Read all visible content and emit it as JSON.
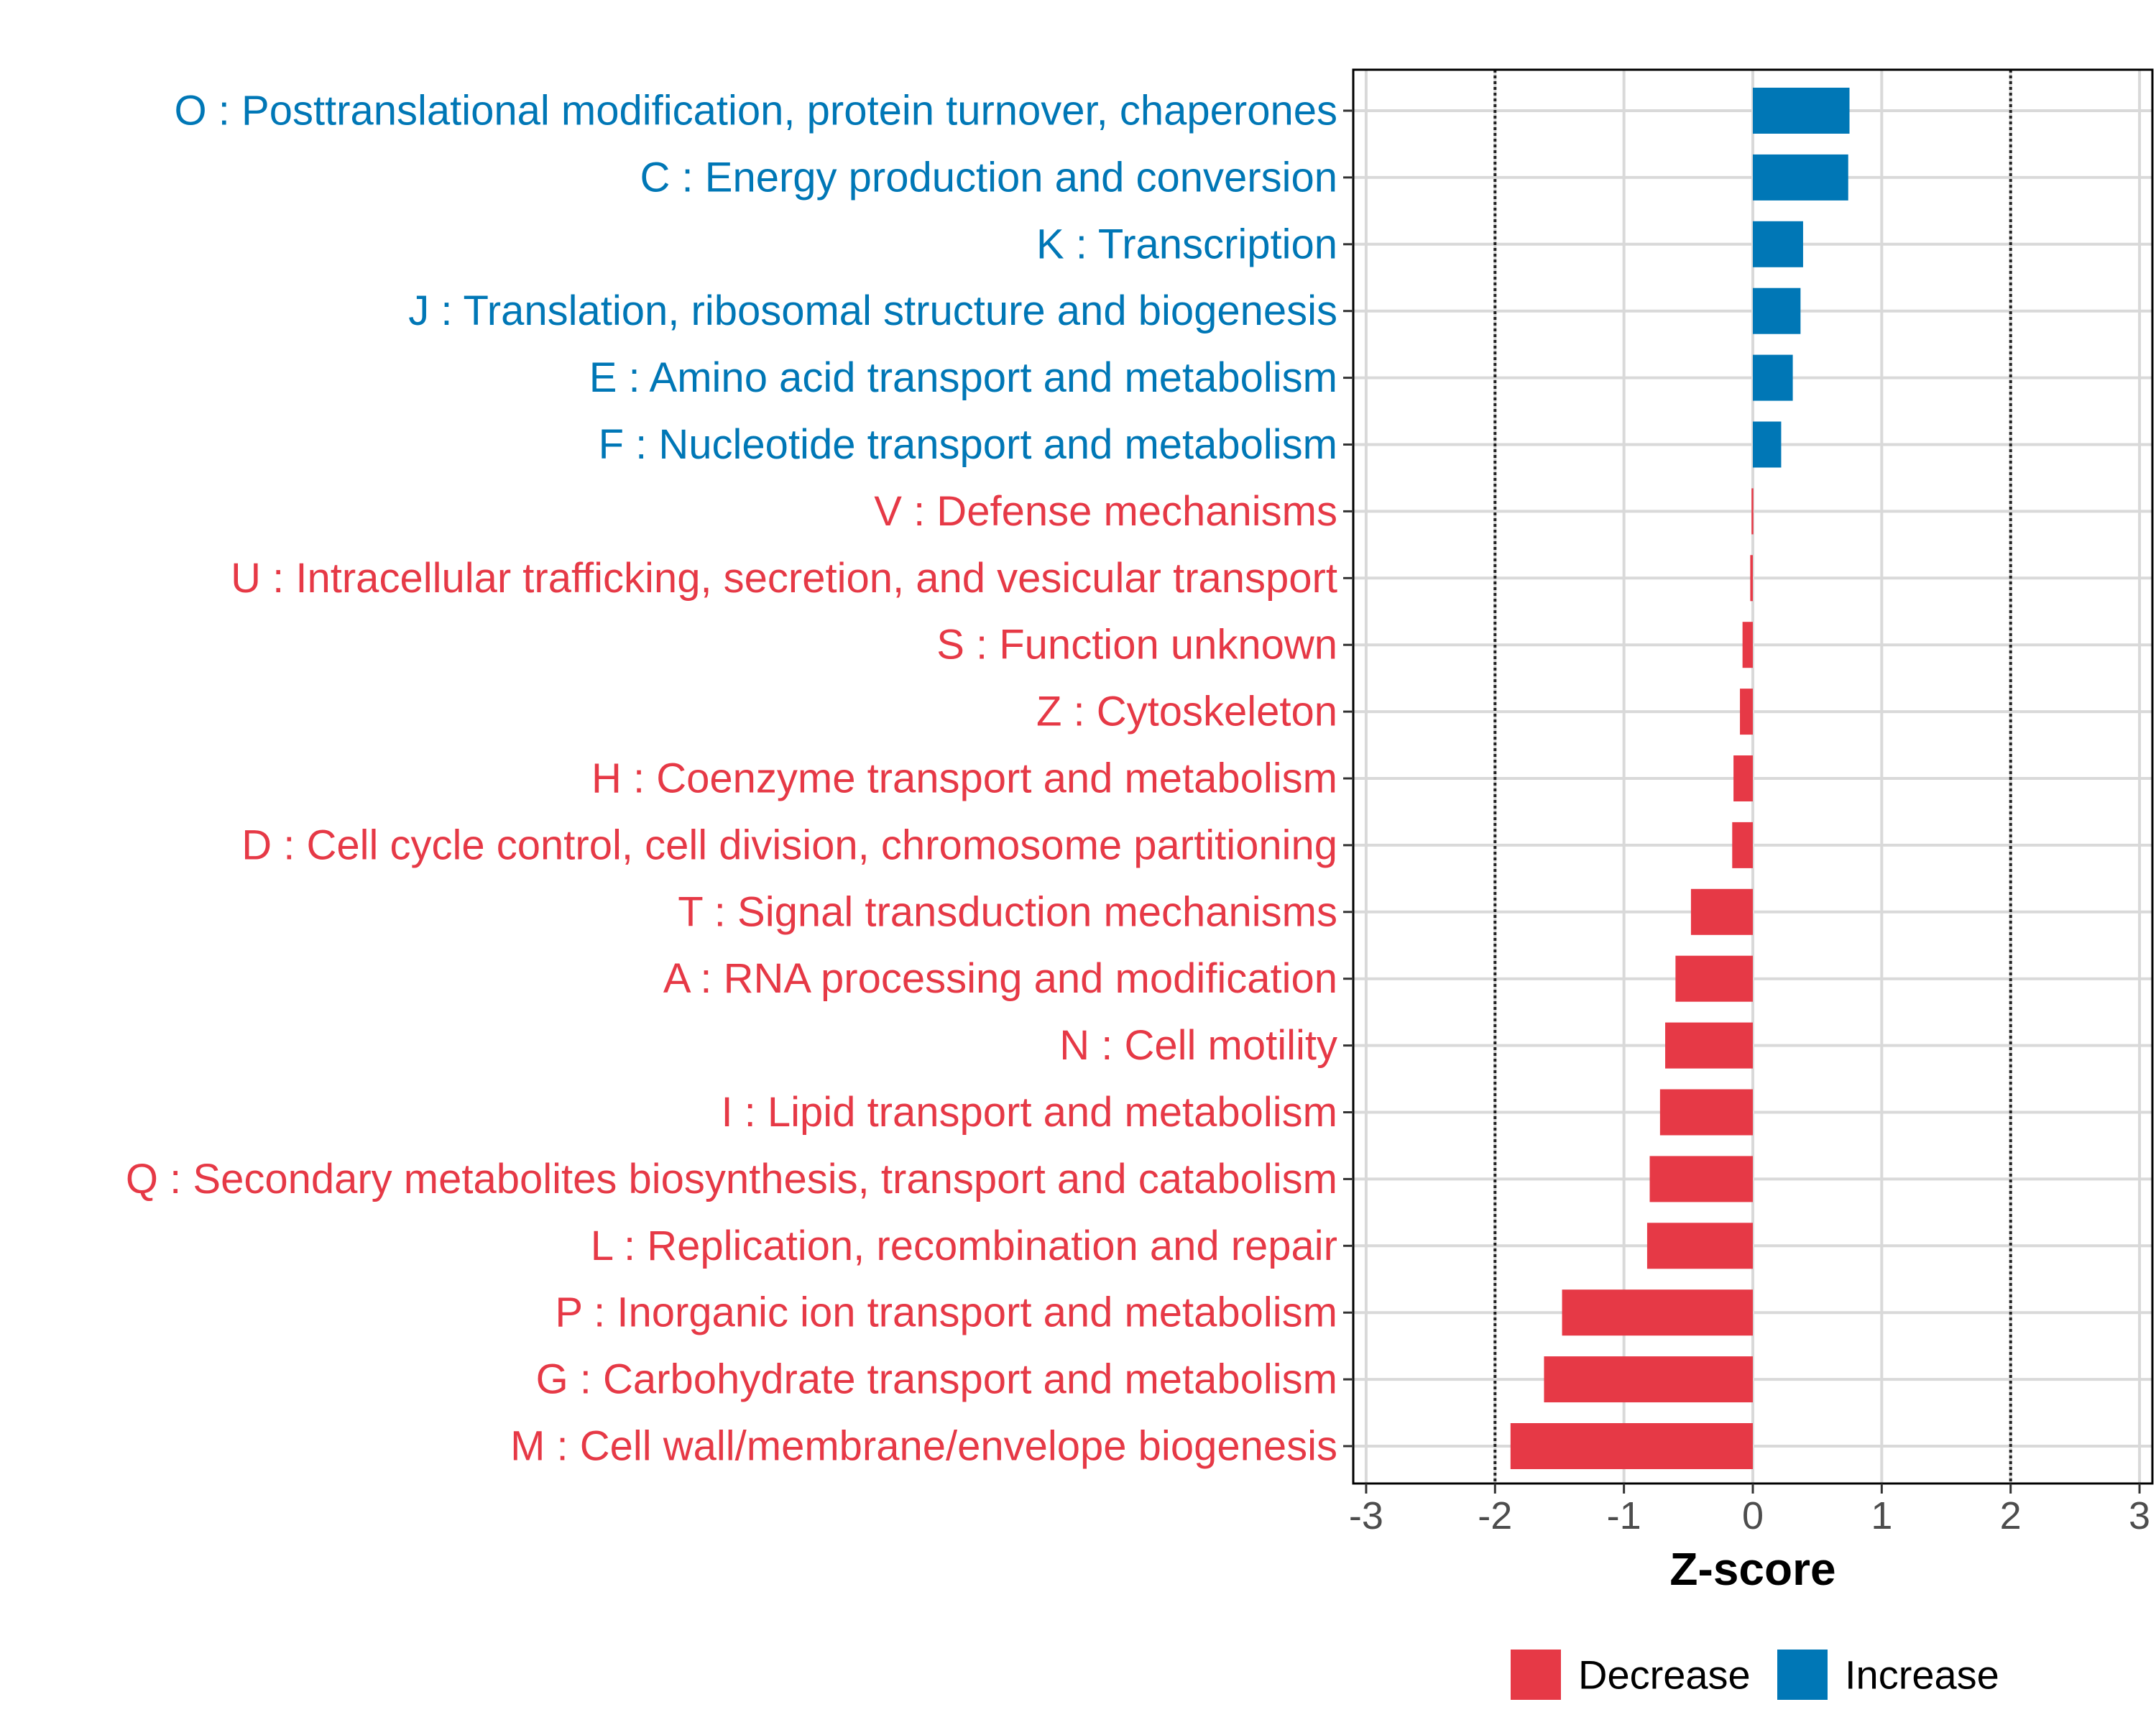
{
  "chart_data": {
    "type": "bar",
    "orientation": "horizontal",
    "xlabel": "Z-score",
    "xlim": [
      -3.1,
      3.1
    ],
    "xticks": [
      -3,
      -2,
      -1,
      0,
      1,
      2,
      3
    ],
    "xtick_labels": [
      "-3",
      "-2",
      "-1",
      "0",
      "1",
      "2",
      "3"
    ],
    "reference_lines": [
      -2,
      2
    ],
    "grid": true,
    "legend_position": "bottom",
    "categories": [
      "O : Posttranslational modification, protein turnover, chaperones",
      "C : Energy production and conversion",
      "K : Transcription",
      "J : Translation, ribosomal structure and biogenesis",
      "E : Amino acid transport and metabolism",
      "F : Nucleotide transport and metabolism",
      "V : Defense mechanisms",
      "U : Intracellular trafficking, secretion, and vesicular transport",
      "S : Function unknown",
      "Z : Cytoskeleton",
      "H : Coenzyme transport and metabolism",
      "D : Cell cycle control, cell division, chromosome partitioning",
      "T : Signal transduction mechanisms",
      "A : RNA processing and modification",
      "N : Cell motility",
      "I : Lipid transport and metabolism",
      "Q : Secondary metabolites biosynthesis, transport and catabolism",
      "L : Replication, recombination and repair",
      "P : Inorganic ion transport and metabolism",
      "G : Carbohydrate transport and metabolism",
      "M : Cell wall/membrane/envelope biogenesis"
    ],
    "values": [
      0.75,
      0.74,
      0.39,
      0.37,
      0.31,
      0.22,
      -0.01,
      -0.02,
      -0.08,
      -0.1,
      -0.15,
      -0.16,
      -0.48,
      -0.6,
      -0.68,
      -0.72,
      -0.8,
      -0.82,
      -1.48,
      -1.62,
      -1.88
    ],
    "groups": [
      "Increase",
      "Increase",
      "Increase",
      "Increase",
      "Increase",
      "Increase",
      "Decrease",
      "Decrease",
      "Decrease",
      "Decrease",
      "Decrease",
      "Decrease",
      "Decrease",
      "Decrease",
      "Decrease",
      "Decrease",
      "Decrease",
      "Decrease",
      "Decrease",
      "Decrease",
      "Decrease"
    ],
    "legend": [
      {
        "name": "Decrease",
        "color": "#e63946"
      },
      {
        "name": "Increase",
        "color": "#0077b6"
      }
    ]
  }
}
